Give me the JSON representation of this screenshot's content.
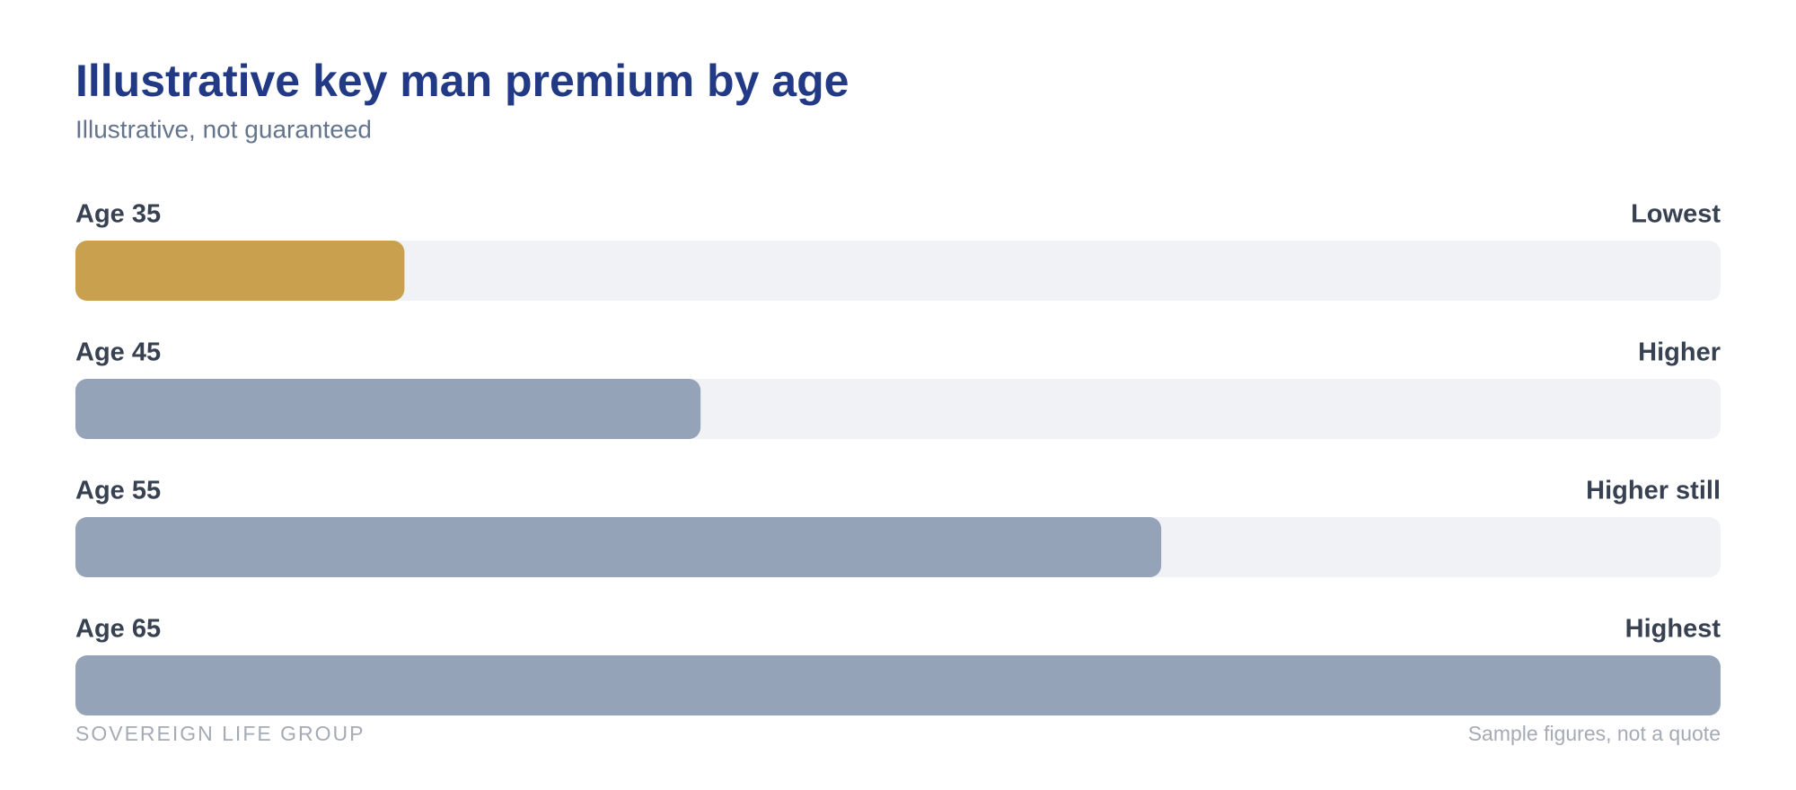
{
  "chart_data": {
    "type": "bar",
    "orientation": "horizontal",
    "title": "Illustrative key man premium by age",
    "subtitle": "Illustrative, not guaranteed",
    "categories": [
      "Age 35",
      "Age 45",
      "Age 55",
      "Age 65"
    ],
    "values": [
      20,
      38,
      66,
      100
    ],
    "value_labels": [
      "Lowest",
      "Higher",
      "Higher still",
      "Highest"
    ],
    "colors": [
      "#c9a14e",
      "#94a3b8",
      "#94a3b8",
      "#94a3b8"
    ],
    "xlim": [
      0,
      100
    ],
    "source": "SOVEREIGN LIFE GROUP",
    "note": "Sample figures, not a quote"
  }
}
